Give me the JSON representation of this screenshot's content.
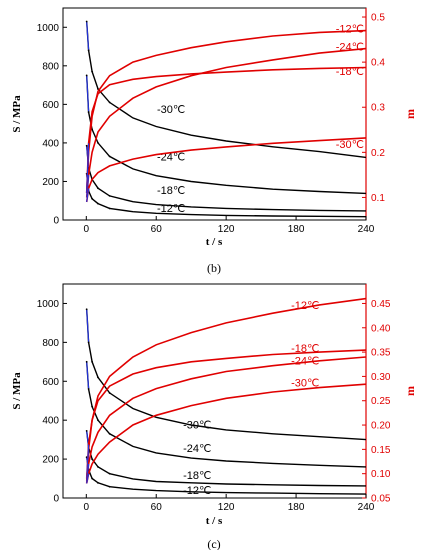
{
  "colors": {
    "stress": "#000000",
    "m": "#e00000",
    "axis_right": "#e00000",
    "initial_segment": "#2233dd"
  },
  "chart_data": [
    {
      "type": "line",
      "panel_caption": "(b)",
      "xlabel": "t / s",
      "ylabel_left": "S / MPa",
      "ylabel_right": "m",
      "xlim": [
        -20,
        240
      ],
      "ylim_left": [
        0,
        1100
      ],
      "ylim_right": [
        0.05,
        0.52
      ],
      "xticks": [
        0,
        60,
        120,
        180,
        240
      ],
      "yticks_left": [
        0,
        200,
        400,
        600,
        800,
        1000
      ],
      "yticks_right": [
        0.1,
        0.2,
        0.3,
        0.4,
        0.5
      ],
      "series_left": [
        {
          "name": "-30℃",
          "label_pos": [
            58,
            1.02,
            576
          ],
          "values": [
            [
              0.3,
              1030
            ],
            [
              2,
              880
            ],
            [
              5,
              770
            ],
            [
              10,
              680
            ],
            [
              20,
              610
            ],
            [
              40,
              530
            ],
            [
              60,
              485
            ],
            [
              90,
              440
            ],
            [
              120,
              410
            ],
            [
              160,
              380
            ],
            [
              200,
              355
            ],
            [
              240,
              325
            ]
          ]
        },
        {
          "name": "-24℃",
          "label_pos": [
            58,
            1.02,
            330
          ],
          "values": [
            [
              0.3,
              750
            ],
            [
              2,
              560
            ],
            [
              5,
              470
            ],
            [
              10,
              400
            ],
            [
              20,
              330
            ],
            [
              40,
              265
            ],
            [
              60,
              230
            ],
            [
              90,
              200
            ],
            [
              120,
              180
            ],
            [
              160,
              160
            ],
            [
              200,
              148
            ],
            [
              240,
              138
            ]
          ]
        },
        {
          "name": "-18℃",
          "label_pos": [
            58,
            1.02,
            155
          ],
          "values": [
            [
              0.3,
              385
            ],
            [
              2,
              270
            ],
            [
              5,
              210
            ],
            [
              10,
              165
            ],
            [
              20,
              125
            ],
            [
              40,
              95
            ],
            [
              60,
              80
            ],
            [
              90,
              68
            ],
            [
              120,
              60
            ],
            [
              160,
              54
            ],
            [
              200,
              50
            ],
            [
              240,
              47
            ]
          ]
        },
        {
          "name": "-12℃",
          "label_pos": [
            58,
            1.02,
            62
          ],
          "values": [
            [
              0.3,
              240
            ],
            [
              2,
              150
            ],
            [
              5,
              110
            ],
            [
              10,
              85
            ],
            [
              20,
              60
            ],
            [
              40,
              43
            ],
            [
              60,
              35
            ],
            [
              90,
              28
            ],
            [
              120,
              24
            ],
            [
              160,
              21
            ],
            [
              200,
              19
            ],
            [
              240,
              17
            ]
          ]
        }
      ],
      "series_right": [
        {
          "name": "-12℃",
          "label_pos": [
            240,
            1.01,
            0.475
          ],
          "values": [
            [
              0.3,
              0.11
            ],
            [
              2,
              0.2
            ],
            [
              5,
              0.28
            ],
            [
              10,
              0.335
            ],
            [
              20,
              0.37
            ],
            [
              40,
              0.4
            ],
            [
              60,
              0.415
            ],
            [
              90,
              0.432
            ],
            [
              120,
              0.445
            ],
            [
              160,
              0.458
            ],
            [
              200,
              0.466
            ],
            [
              240,
              0.47
            ]
          ]
        },
        {
          "name": "-24℃",
          "label_pos": [
            240,
            1.01,
            0.435
          ],
          "values": [
            [
              0.3,
              0.1
            ],
            [
              2,
              0.15
            ],
            [
              5,
              0.2
            ],
            [
              10,
              0.245
            ],
            [
              20,
              0.28
            ],
            [
              40,
              0.32
            ],
            [
              60,
              0.345
            ],
            [
              90,
              0.37
            ],
            [
              120,
              0.388
            ],
            [
              160,
              0.405
            ],
            [
              200,
              0.42
            ],
            [
              240,
              0.43
            ]
          ]
        },
        {
          "name": "-18℃",
          "label_pos": [
            240,
            1.01,
            0.38
          ],
          "values": [
            [
              0.3,
              0.11
            ],
            [
              2,
              0.22
            ],
            [
              5,
              0.29
            ],
            [
              10,
              0.33
            ],
            [
              20,
              0.35
            ],
            [
              40,
              0.362
            ],
            [
              60,
              0.368
            ],
            [
              90,
              0.374
            ],
            [
              120,
              0.378
            ],
            [
              160,
              0.383
            ],
            [
              200,
              0.386
            ],
            [
              240,
              0.388
            ]
          ]
        },
        {
          "name": "-30℃",
          "label_pos": [
            240,
            1.01,
            0.218
          ],
          "values": [
            [
              0.3,
              0.09
            ],
            [
              2,
              0.12
            ],
            [
              5,
              0.14
            ],
            [
              10,
              0.155
            ],
            [
              20,
              0.17
            ],
            [
              40,
              0.185
            ],
            [
              60,
              0.195
            ],
            [
              90,
              0.205
            ],
            [
              120,
              0.212
            ],
            [
              160,
              0.22
            ],
            [
              200,
              0.226
            ],
            [
              240,
              0.232
            ]
          ]
        }
      ]
    },
    {
      "type": "line",
      "panel_caption": "(c)",
      "xlabel": "t / s",
      "ylabel_left": "S / MPa",
      "ylabel_right": "m",
      "xlim": [
        -20,
        240
      ],
      "ylim_left": [
        0,
        1100
      ],
      "ylim_right": [
        0.05,
        0.49
      ],
      "xticks": [
        0,
        60,
        120,
        180,
        240
      ],
      "yticks_left": [
        0,
        200,
        400,
        600,
        800,
        1000
      ],
      "yticks_right": [
        0.05,
        0.1,
        0.15,
        0.2,
        0.25,
        0.3,
        0.35,
        0.4,
        0.45
      ],
      "series_left": [
        {
          "name": "-30℃",
          "label_pos": [
            80,
            1.02,
            378
          ],
          "values": [
            [
              0.3,
              970
            ],
            [
              2,
              800
            ],
            [
              5,
              700
            ],
            [
              10,
              620
            ],
            [
              20,
              540
            ],
            [
              40,
              460
            ],
            [
              60,
              415
            ],
            [
              90,
              375
            ],
            [
              120,
              350
            ],
            [
              160,
              330
            ],
            [
              200,
              315
            ],
            [
              240,
              300
            ]
          ]
        },
        {
          "name": "-24℃",
          "label_pos": [
            80,
            1.02,
            258
          ],
          "values": [
            [
              0.3,
              700
            ],
            [
              2,
              560
            ],
            [
              5,
              470
            ],
            [
              10,
              400
            ],
            [
              20,
              330
            ],
            [
              40,
              265
            ],
            [
              60,
              232
            ],
            [
              90,
              205
            ],
            [
              120,
              190
            ],
            [
              160,
              178
            ],
            [
              200,
              168
            ],
            [
              240,
              160
            ]
          ]
        },
        {
          "name": "-18℃",
          "label_pos": [
            80,
            1.02,
            118
          ],
          "values": [
            [
              0.3,
              345
            ],
            [
              2,
              260
            ],
            [
              5,
              200
            ],
            [
              10,
              160
            ],
            [
              20,
              125
            ],
            [
              40,
              98
            ],
            [
              60,
              85
            ],
            [
              90,
              78
            ],
            [
              120,
              72
            ],
            [
              160,
              68
            ],
            [
              200,
              64
            ],
            [
              240,
              62
            ]
          ]
        },
        {
          "name": "-12℃",
          "label_pos": [
            80,
            1.02,
            40
          ],
          "values": [
            [
              0.3,
              210
            ],
            [
              2,
              145
            ],
            [
              5,
              100
            ],
            [
              10,
              78
            ],
            [
              20,
              58
            ],
            [
              40,
              45
            ],
            [
              60,
              38
            ],
            [
              90,
              32
            ],
            [
              120,
              28
            ],
            [
              160,
              25
            ],
            [
              200,
              22
            ],
            [
              240,
              20
            ]
          ]
        }
      ],
      "series_right": [
        {
          "name": "-12℃",
          "label_pos": [
            200,
            1.0,
            0.447
          ],
          "values": [
            [
              0.3,
              0.08
            ],
            [
              2,
              0.15
            ],
            [
              5,
              0.21
            ],
            [
              10,
              0.26
            ],
            [
              20,
              0.3
            ],
            [
              40,
              0.34
            ],
            [
              60,
              0.365
            ],
            [
              90,
              0.39
            ],
            [
              120,
              0.41
            ],
            [
              160,
              0.43
            ],
            [
              200,
              0.447
            ],
            [
              240,
              0.46
            ]
          ]
        },
        {
          "name": "-18℃",
          "label_pos": [
            200,
            1.0,
            0.358
          ],
          "values": [
            [
              0.3,
              0.09
            ],
            [
              2,
              0.16
            ],
            [
              5,
              0.21
            ],
            [
              10,
              0.25
            ],
            [
              20,
              0.28
            ],
            [
              40,
              0.305
            ],
            [
              60,
              0.318
            ],
            [
              90,
              0.33
            ],
            [
              120,
              0.337
            ],
            [
              160,
              0.345
            ],
            [
              200,
              0.35
            ],
            [
              240,
              0.354
            ]
          ]
        },
        {
          "name": "-24℃",
          "label_pos": [
            200,
            1.0,
            0.333
          ],
          "values": [
            [
              0.3,
              0.085
            ],
            [
              2,
              0.12
            ],
            [
              5,
              0.155
            ],
            [
              10,
              0.185
            ],
            [
              20,
              0.22
            ],
            [
              40,
              0.255
            ],
            [
              60,
              0.275
            ],
            [
              90,
              0.295
            ],
            [
              120,
              0.31
            ],
            [
              160,
              0.322
            ],
            [
              200,
              0.332
            ],
            [
              240,
              0.34
            ]
          ]
        },
        {
          "name": "-30℃",
          "label_pos": [
            200,
            1.0,
            0.287
          ],
          "values": [
            [
              0.3,
              0.08
            ],
            [
              2,
              0.1
            ],
            [
              5,
              0.12
            ],
            [
              10,
              0.14
            ],
            [
              20,
              0.165
            ],
            [
              40,
              0.2
            ],
            [
              60,
              0.22
            ],
            [
              90,
              0.24
            ],
            [
              120,
              0.255
            ],
            [
              160,
              0.268
            ],
            [
              200,
              0.277
            ],
            [
              240,
              0.284
            ]
          ]
        }
      ]
    }
  ]
}
